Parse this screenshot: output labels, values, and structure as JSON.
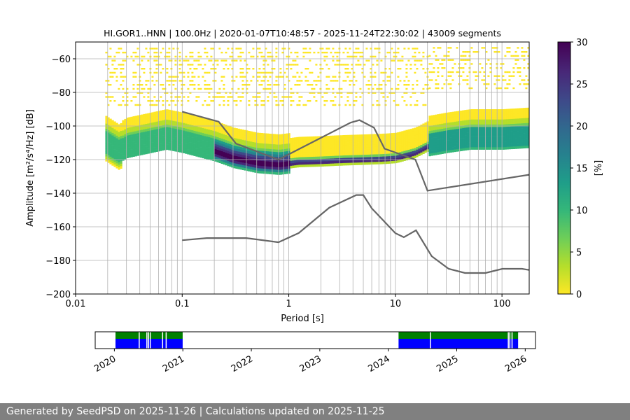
{
  "footer": {
    "text": "Generated by SeedPSD on 2025-11-26 | Calculations updated on 2025-11-25"
  },
  "colors": {
    "viridis": [
      "#fde725",
      "#b5de2b",
      "#6ece58",
      "#35b779",
      "#1f9e89",
      "#26828e",
      "#31688e",
      "#3e4989",
      "#482878",
      "#440154"
    ],
    "noise_model": "#666666",
    "availability_green": "#008000",
    "availability_blue": "#0000ff",
    "grid": "#b0b0b0",
    "footer_bg": "#808080"
  },
  "chart_data": [
    {
      "type": "heatmap",
      "title": "HI.GOR1..HNN | 100.0Hz | 2020-01-07T10:48:57 - 2025-11-24T22:30:02 | 43009 segments",
      "xlabel": "Period [s]",
      "ylabel": "Amplitude [m²/s⁴/Hz] [dB]",
      "x_scale": "log",
      "xlim": [
        0.01,
        180
      ],
      "ylim": [
        -200,
        -50
      ],
      "x_ticks": [
        0.01,
        0.1,
        1,
        10,
        100
      ],
      "x_tick_labels": [
        "0.01",
        "0.1",
        "1",
        "10",
        "100"
      ],
      "y_ticks": [
        -200,
        -180,
        -160,
        -140,
        -120,
        -100,
        -80,
        -60
      ],
      "y_tick_labels": [
        "−200",
        "−180",
        "−160",
        "−140",
        "−120",
        "−100",
        "−80",
        "−60"
      ],
      "grid": true,
      "period_gridlines": [
        0.02,
        0.03,
        0.04,
        0.05,
        0.06,
        0.07,
        0.08,
        0.09,
        0.1,
        0.2,
        0.3,
        0.4,
        0.5,
        0.6,
        0.7,
        0.8,
        0.9,
        1,
        2,
        3,
        4,
        5,
        6,
        7,
        8,
        9,
        10,
        20,
        30,
        40,
        50,
        60,
        70,
        80,
        90,
        100
      ],
      "colorbar": {
        "label": "[%]",
        "range": [
          0,
          30
        ],
        "ticks": [
          0,
          5,
          10,
          15,
          20,
          25,
          30
        ],
        "tick_labels": [
          "0",
          "5",
          "10",
          "15",
          "20",
          "25",
          "30"
        ]
      },
      "psd_mode": [
        [
          0.019,
          -112
        ],
        [
          0.025,
          -117
        ],
        [
          0.03,
          -114
        ],
        [
          0.05,
          -111
        ],
        [
          0.07,
          -109
        ],
        [
          0.1,
          -111
        ],
        [
          0.2,
          -116
        ],
        [
          0.3,
          -120
        ],
        [
          0.5,
          -123
        ],
        [
          0.8,
          -124
        ],
        [
          1.2,
          -122.5
        ],
        [
          2,
          -122
        ],
        [
          3,
          -121.5
        ],
        [
          5,
          -121
        ],
        [
          8,
          -120.5
        ],
        [
          10,
          -120
        ],
        [
          15,
          -117
        ],
        [
          20,
          -113
        ],
        [
          30,
          -111
        ],
        [
          50,
          -109
        ],
        [
          100,
          -109
        ],
        [
          180,
          -108
        ]
      ],
      "series": [
        {
          "name": "NHNM",
          "points": [
            [
              0.1,
              -91.5
            ],
            [
              0.22,
              -97.4
            ],
            [
              0.32,
              -110.5
            ],
            [
              0.8,
              -120
            ],
            [
              3.8,
              -98
            ],
            [
              4.6,
              -96.5
            ],
            [
              6.3,
              -101
            ],
            [
              7.9,
              -113.5
            ],
            [
              15.4,
              -120
            ],
            [
              20,
              -138.5
            ],
            [
              180,
              -129
            ]
          ]
        },
        {
          "name": "NLNM",
          "points": [
            [
              0.1,
              -168
            ],
            [
              0.17,
              -166.7
            ],
            [
              0.4,
              -166.7
            ],
            [
              0.8,
              -169.2
            ],
            [
              1.24,
              -163.7
            ],
            [
              2.4,
              -148.6
            ],
            [
              4.3,
              -141.1
            ],
            [
              5,
              -141.1
            ],
            [
              6,
              -149
            ],
            [
              10,
              -163.8
            ],
            [
              12,
              -166.2
            ],
            [
              15.6,
              -162.1
            ],
            [
              21.9,
              -177.5
            ],
            [
              31.6,
              -185
            ],
            [
              45,
              -187.5
            ],
            [
              70,
              -187.5
            ],
            [
              101,
              -185
            ],
            [
              154,
              -185
            ],
            [
              180,
              -185.7
            ]
          ]
        }
      ]
    },
    {
      "type": "timeline",
      "x_tick_labels": [
        "2020",
        "2021",
        "2022",
        "2023",
        "2024",
        "2025",
        "2026"
      ],
      "x_ticks": [
        2020,
        2021,
        2022,
        2023,
        2024,
        2025,
        2026
      ],
      "xlim": [
        2019.72,
        2026.15
      ],
      "availability_periods": [
        [
          "2020-01-07",
          "2020-12-31"
        ],
        [
          "2024-02-25",
          "2025-11-24"
        ]
      ],
      "gaps": [
        "2020-05-10",
        "2020-06-20",
        "2020-06-29",
        "2020-07-08",
        "2020-09-12",
        "2020-10-01",
        "2024-08-10",
        "2025-09-30",
        "2025-10-08",
        "2025-10-20"
      ]
    }
  ]
}
